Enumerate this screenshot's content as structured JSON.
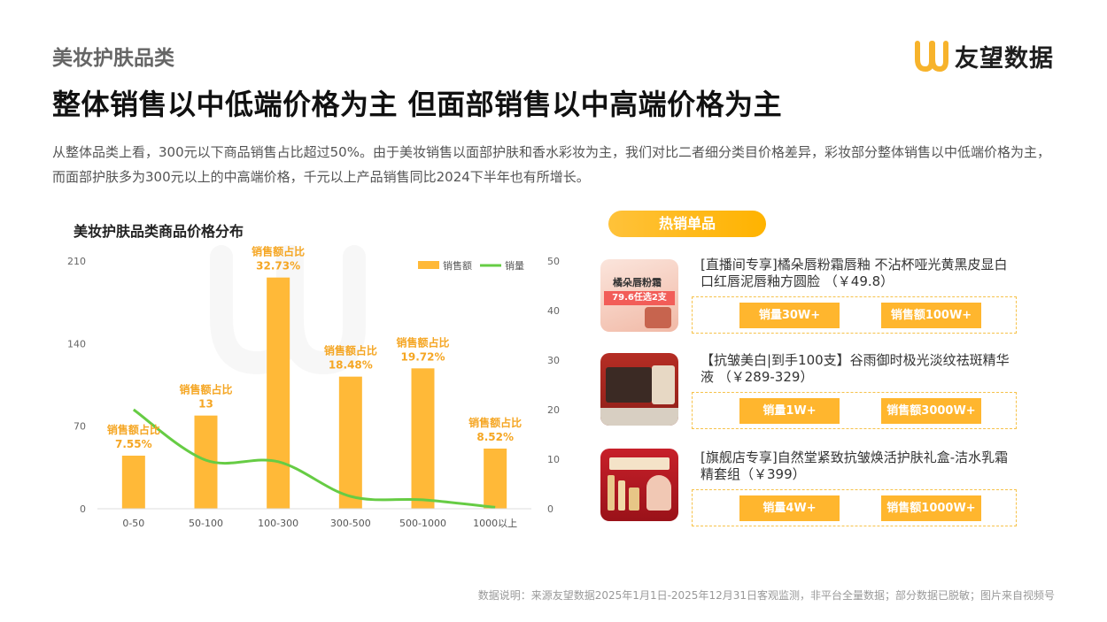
{
  "header": {
    "category": "美妆护肤品类",
    "brand": "友望数据",
    "headline": "整体销售以中低端价格为主 但面部销售以中高端价格为主",
    "description": "从整体品类上看，300元以下商品销售占比超过50%。由于美妆销售以面部护肤和香水彩妆为主，我们对比二者细分类目价格差异，彩妆部分整体销售以中低端价格为主，而面部护肤多为300元以上的中高端价格，千元以上产品销售同比2024下半年也有所增长。"
  },
  "chart_title": "美妆护肤品类商品价格分布",
  "chart_data": {
    "type": "bar",
    "categories": [
      "0-50",
      "50-100",
      "100-300",
      "300-500",
      "500-1000",
      "1000以上"
    ],
    "series": [
      {
        "name": "销售额",
        "type": "bar",
        "axis": "left",
        "values": [
          45,
          79,
          196,
          112,
          119,
          51
        ]
      },
      {
        "name": "销量",
        "type": "line",
        "axis": "right",
        "values": [
          20,
          9.8,
          9.5,
          2.5,
          1.8,
          0.3
        ]
      }
    ],
    "left_axis": {
      "ylim": [
        0,
        210
      ],
      "ticks": [
        "0",
        "70",
        "140",
        "210"
      ]
    },
    "right_axis": {
      "ylim": [
        0,
        50
      ],
      "ticks": [
        "0",
        "10",
        "20",
        "30",
        "40",
        "50"
      ]
    },
    "data_labels": [
      [
        "销售额占比",
        "7.55%"
      ],
      [
        "销售额占比",
        "13"
      ],
      [
        "销售额占比",
        "32.73%"
      ],
      [
        "销售额占比",
        "18.48%"
      ],
      [
        "销售额占比",
        "19.72%"
      ],
      [
        "销售额占比",
        "8.52%"
      ]
    ],
    "legend_position": "top-right",
    "colors": {
      "bar": "#FFB938",
      "line": "#66CC44",
      "label": "#F5A623"
    }
  },
  "hot_section": {
    "title": "热销单品",
    "products": [
      {
        "name": "[直播间专享]橘朵唇粉霜唇釉 不沾杯哑光黄黑皮显白口红唇泥唇釉方圆脸 （￥49.8）",
        "thumb_text": [
          "橘朵唇粉霜",
          "79.6任选2支"
        ],
        "volume": "销量30W+",
        "revenue": "销售额100W+"
      },
      {
        "name": "【抗皱美白|到手100支】谷雨御时极光淡纹祛斑精华液 （￥289-329）",
        "volume": "销量1W+",
        "revenue": "销售额3000W+"
      },
      {
        "name": "[旗舰店专享]自然堂紧致抗皱焕活护肤礼盒-洁水乳霜精套组（￥399）",
        "volume": "销量4W+",
        "revenue": "销售额1000W+"
      }
    ]
  },
  "footnote": "数据说明：来源友望数据2025年1月1日-2025年12月31日客观监测，非平台全量数据；部分数据已脱敏；图片来自视频号",
  "colors": {
    "accent": "#FFB62E",
    "logo": "#F7B32B"
  }
}
